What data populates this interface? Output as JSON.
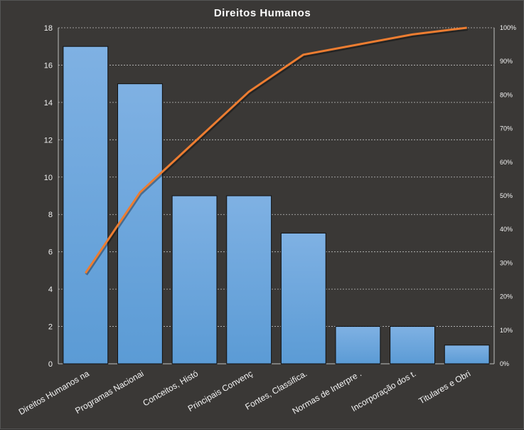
{
  "chart_data": {
    "type": "bar",
    "title": "Direitos Humanos",
    "categories": [
      "Direitos Humanos na",
      "Programas Nacionai",
      "Conceitos, Histó",
      "Principais Convenç",
      "Fontes, Classifica.",
      "Normas de Interpre .",
      "Incorporação dos t.",
      "Titulares e Obri"
    ],
    "series": [
      {
        "type": "bar",
        "axis": "left",
        "values": [
          17,
          15,
          9,
          9,
          7,
          2,
          2,
          1
        ]
      },
      {
        "type": "line",
        "axis": "right",
        "values": [
          0.27,
          0.51,
          0.66,
          0.81,
          0.92,
          0.95,
          0.98,
          1.0
        ]
      }
    ],
    "ylim": [
      0,
      18
    ],
    "yticks": [
      "0",
      "2",
      "4",
      "6",
      "8",
      "10",
      "12",
      "14",
      "16",
      "18"
    ],
    "y2lim": [
      0,
      1
    ],
    "y2ticks": [
      "0%",
      "10%",
      "20%",
      "30%",
      "40%",
      "50%",
      "60%",
      "70%",
      "80%",
      "90%",
      "100%"
    ],
    "grid": true,
    "legend": "none",
    "colors": {
      "bar": "#5b9bd5",
      "bar_top": "#7fb1e3",
      "line": "#ed7d31",
      "background": "#3a3836",
      "grid": "#bfbfbf",
      "text": "#f2f2f2"
    }
  }
}
